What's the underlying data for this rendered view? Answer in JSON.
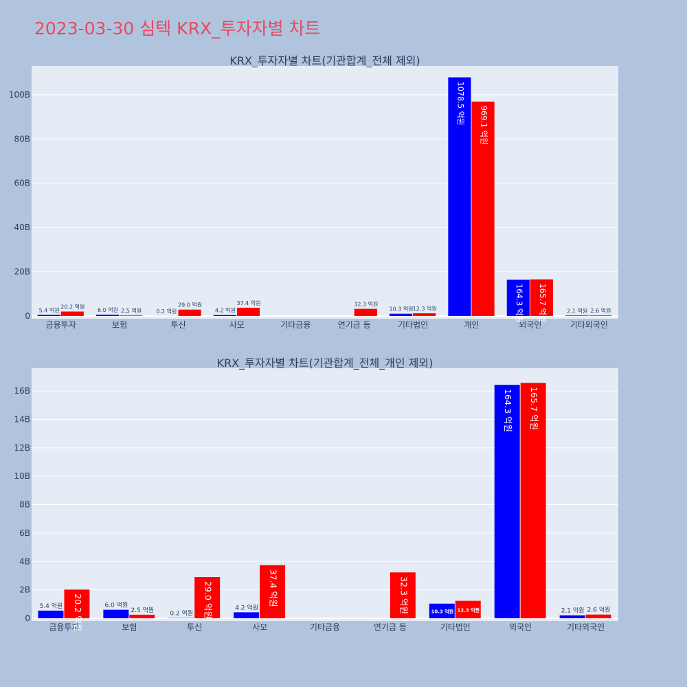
{
  "page": {
    "title": "2023-03-30 심텍 KRX_투자자별 차트",
    "title_color": "#e8495f",
    "background": "#b0c4de"
  },
  "chart_data": [
    {
      "type": "bar",
      "title": "KRX_투자자별 차트(기관합계_전체 제외)",
      "categories": [
        "금융투자",
        "보험",
        "투신",
        "사모",
        "기타금융",
        "연기금 등",
        "기타법인",
        "개인",
        "외국인",
        "기타외국인"
      ],
      "y_tick_labels": [
        "0",
        "20B",
        "40B",
        "60B",
        "80B",
        "100B"
      ],
      "y_ticks": [
        0,
        20000000000,
        40000000000,
        60000000000,
        80000000000,
        100000000000
      ],
      "ylim": [
        0,
        113000000000
      ],
      "grid": true,
      "series": [
        {
          "color": "#0000ff",
          "values": [
            540000000,
            600000000,
            20000000,
            420000000,
            0,
            0,
            1030000000,
            107850000000,
            16430000000,
            210000000
          ],
          "labels": [
            "5.4 억원",
            "6.0 억원",
            "0.2 억원",
            "4.2 억원",
            "",
            "",
            "10.3 억원",
            "1078.5 억원",
            "164.3 억원",
            "2.1 억원"
          ]
        },
        {
          "color": "#ff0000",
          "values": [
            2020000000,
            250000000,
            2900000000,
            3740000000,
            0,
            3230000000,
            1230000000,
            96910000000,
            16570000000,
            260000000
          ],
          "labels": [
            "20.2 억원",
            "2.5 억원",
            "29.0 억원",
            "37.4 억원",
            "",
            "32.3 억원",
            "12.3 억원",
            "969.1 억원",
            "165.7 억원",
            "2.6 억원"
          ]
        }
      ]
    },
    {
      "type": "bar",
      "title": "KRX_투자자별 차트(기관합계_전체_개인 제외)",
      "categories": [
        "금융투자",
        "보험",
        "투신",
        "사모",
        "기타금융",
        "연기금 등",
        "기타법인",
        "외국인",
        "기타외국인"
      ],
      "y_tick_labels": [
        "0",
        "2B",
        "4B",
        "6B",
        "8B",
        "10B",
        "12B",
        "14B",
        "16B"
      ],
      "y_ticks": [
        0,
        2000000000,
        4000000000,
        6000000000,
        8000000000,
        10000000000,
        12000000000,
        14000000000,
        16000000000
      ],
      "ylim": [
        0,
        17600000000
      ],
      "grid": true,
      "series": [
        {
          "color": "#0000ff",
          "values": [
            540000000,
            600000000,
            20000000,
            420000000,
            0,
            0,
            1030000000,
            16430000000,
            210000000
          ],
          "labels": [
            "5.4 억원",
            "6.0 억원",
            "0.2 억원",
            "4.2 억원",
            "",
            "",
            "10.3 억원",
            "164.3 억원",
            "2.1 억원"
          ]
        },
        {
          "color": "#ff0000",
          "values": [
            2020000000,
            250000000,
            2900000000,
            3740000000,
            0,
            3230000000,
            1230000000,
            16570000000,
            260000000
          ],
          "labels": [
            "20.2 억원",
            "2.5 억원",
            "29.0 억원",
            "37.4 억원",
            "",
            "32.3 억원",
            "12.3 억원",
            "165.7 억원",
            "2.6 억원"
          ]
        }
      ]
    }
  ]
}
